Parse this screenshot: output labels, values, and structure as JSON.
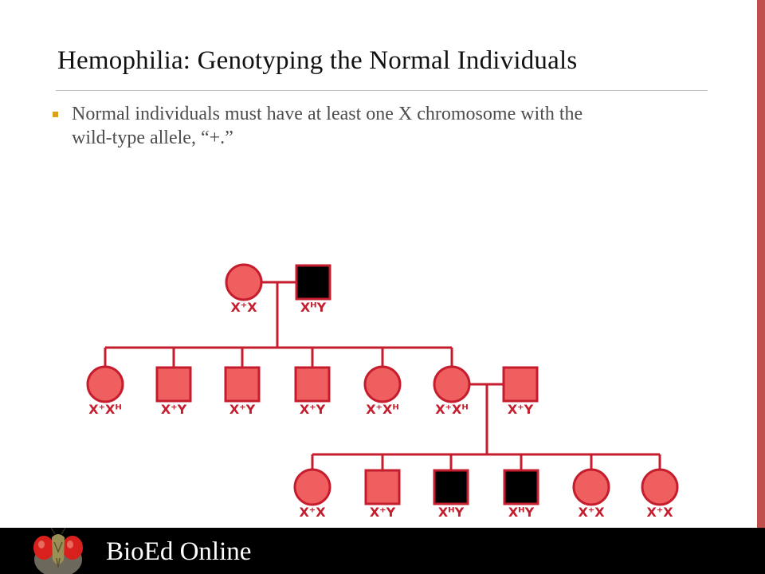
{
  "slide": {
    "title": "Hemophilia: Genotyping the Normal Individuals",
    "bullet": "Normal individuals must have at least one X chromosome with the wild-type allele, “+.”"
  },
  "pedigree": {
    "colors": {
      "normal_fill": "#ef5f5f",
      "affected_fill": "#000000",
      "outline": "#c51d2d",
      "label": "#c51d2d"
    },
    "generation_1": [
      {
        "sex": "female",
        "affected": false,
        "label": "X⁺X"
      },
      {
        "sex": "male",
        "affected": true,
        "label": "XᴴY"
      }
    ],
    "generation_2": [
      {
        "sex": "female",
        "affected": false,
        "label": "X⁺Xᴴ"
      },
      {
        "sex": "male",
        "affected": false,
        "label": "X⁺Y"
      },
      {
        "sex": "male",
        "affected": false,
        "label": "X⁺Y"
      },
      {
        "sex": "male",
        "affected": false,
        "label": "X⁺Y"
      },
      {
        "sex": "female",
        "affected": false,
        "label": "X⁺Xᴴ"
      },
      {
        "sex": "female",
        "affected": false,
        "label": "X⁺Xᴴ"
      },
      {
        "sex": "male",
        "affected": false,
        "label": "X⁺Y"
      }
    ],
    "generation_3": [
      {
        "sex": "female",
        "affected": false,
        "label": "X⁺X"
      },
      {
        "sex": "male",
        "affected": false,
        "label": "X⁺Y"
      },
      {
        "sex": "male",
        "affected": true,
        "label": "XᴴY"
      },
      {
        "sex": "male",
        "affected": true,
        "label": "XᴴY"
      },
      {
        "sex": "female",
        "affected": false,
        "label": "X⁺X"
      },
      {
        "sex": "female",
        "affected": false,
        "label": "X⁺X"
      }
    ]
  },
  "footer": {
    "brand": "BioEd Online",
    "logo_icon": "fruit-fly-icon"
  }
}
